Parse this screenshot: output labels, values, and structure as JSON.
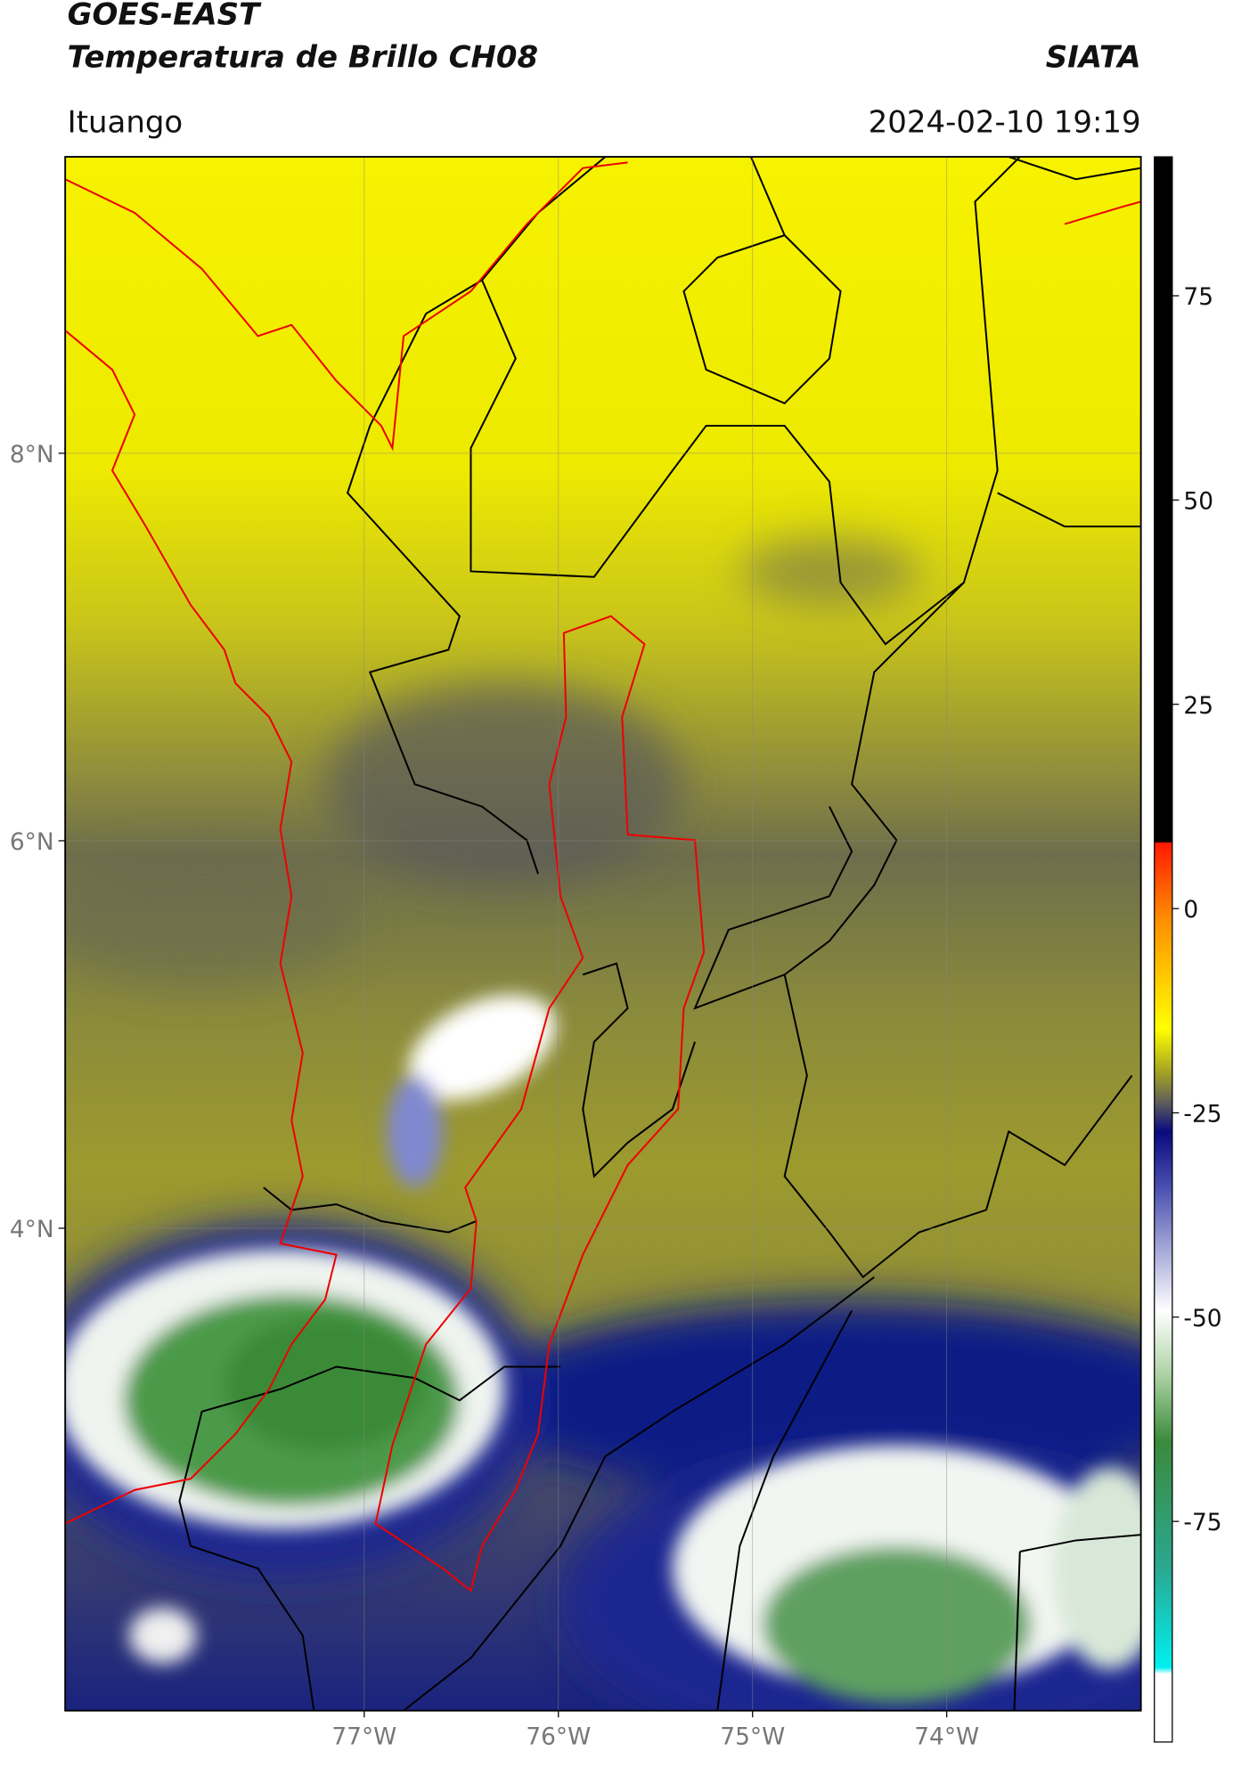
{
  "header": {
    "title": "GOES-EAST",
    "subtitle": "Temperatura de Brillo CH08",
    "source": "SIATA",
    "location": "Ituango",
    "datetime": "2024-02-10 19:19"
  },
  "map": {
    "xlim": [
      -78.54,
      -73.0
    ],
    "ylim": [
      1.51,
      9.53
    ],
    "xticks": [
      {
        "value": -77,
        "label": "77°W"
      },
      {
        "value": -76,
        "label": "76°W"
      },
      {
        "value": -75,
        "label": "75°W"
      },
      {
        "value": -74,
        "label": "74°W"
      }
    ],
    "yticks": [
      {
        "value": 8,
        "label": "8°N"
      },
      {
        "value": 6,
        "label": "6°N"
      },
      {
        "value": 4,
        "label": "4°N"
      }
    ],
    "grid": true
  },
  "colorbar": {
    "range": [
      -102,
      92
    ],
    "ticks": [
      75,
      50,
      25,
      0,
      -25,
      -50,
      -75
    ]
  }
}
